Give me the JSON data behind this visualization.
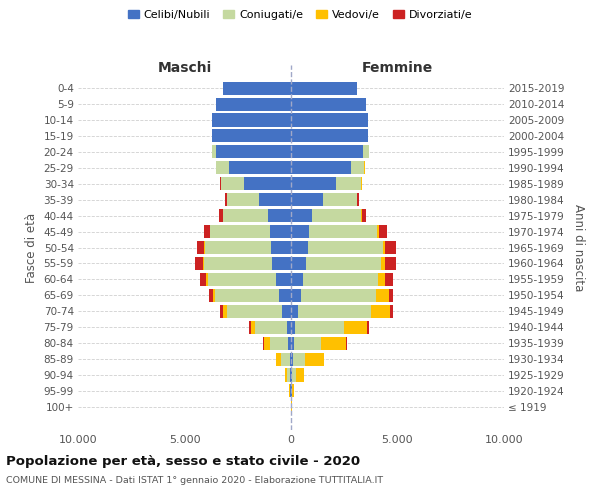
{
  "age_groups": [
    "100+",
    "95-99",
    "90-94",
    "85-89",
    "80-84",
    "75-79",
    "70-74",
    "65-69",
    "60-64",
    "55-59",
    "50-54",
    "45-49",
    "40-44",
    "35-39",
    "30-34",
    "25-29",
    "20-24",
    "15-19",
    "10-14",
    "5-9",
    "0-4"
  ],
  "birth_years": [
    "≤ 1919",
    "1920-1924",
    "1925-1929",
    "1930-1934",
    "1935-1939",
    "1940-1944",
    "1945-1949",
    "1950-1954",
    "1955-1959",
    "1960-1964",
    "1965-1969",
    "1970-1974",
    "1975-1979",
    "1980-1984",
    "1985-1989",
    "1990-1994",
    "1995-1999",
    "2000-2004",
    "2005-2009",
    "2010-2014",
    "2015-2019"
  ],
  "maschi": {
    "celibi": [
      10,
      25,
      40,
      70,
      150,
      200,
      400,
      550,
      700,
      900,
      950,
      1000,
      1100,
      1500,
      2200,
      2900,
      3500,
      3700,
      3700,
      3500,
      3200
    ],
    "coniugati": [
      8,
      35,
      130,
      400,
      850,
      1500,
      2600,
      3000,
      3200,
      3200,
      3100,
      2800,
      2100,
      1500,
      1100,
      600,
      200,
      10,
      0,
      0,
      0
    ],
    "vedovi": [
      5,
      20,
      90,
      230,
      290,
      200,
      200,
      100,
      80,
      50,
      30,
      20,
      10,
      5,
      5,
      5,
      5,
      5,
      0,
      0,
      0
    ],
    "divorziati": [
      0,
      0,
      5,
      10,
      30,
      80,
      150,
      200,
      280,
      350,
      350,
      250,
      150,
      80,
      40,
      10,
      5,
      0,
      0,
      0,
      0
    ]
  },
  "femmine": {
    "nubili": [
      10,
      25,
      40,
      80,
      130,
      200,
      350,
      480,
      580,
      720,
      800,
      850,
      1000,
      1500,
      2100,
      2800,
      3400,
      3600,
      3600,
      3500,
      3100
    ],
    "coniugate": [
      8,
      35,
      180,
      580,
      1300,
      2300,
      3400,
      3500,
      3500,
      3500,
      3500,
      3200,
      2300,
      1600,
      1200,
      650,
      250,
      20,
      0,
      0,
      0
    ],
    "vedove": [
      12,
      70,
      380,
      880,
      1150,
      1050,
      880,
      600,
      350,
      200,
      120,
      80,
      40,
      20,
      10,
      5,
      5,
      5,
      0,
      0,
      0
    ],
    "divorziate": [
      0,
      0,
      10,
      25,
      55,
      100,
      150,
      200,
      350,
      500,
      500,
      400,
      200,
      80,
      40,
      10,
      5,
      0,
      0,
      0,
      0
    ]
  },
  "colors": {
    "celibi": "#4472c4",
    "coniugati": "#c5d9a0",
    "vedovi": "#ffc000",
    "divorziati": "#cc2222"
  },
  "legend_labels": [
    "Celibi/Nubili",
    "Coniugati/e",
    "Vedovi/e",
    "Divorziati/e"
  ],
  "title": "Popolazione per età, sesso e stato civile - 2020",
  "subtitle": "COMUNE DI MESSINA - Dati ISTAT 1° gennaio 2020 - Elaborazione TUTTITALIA.IT",
  "label_maschi": "Maschi",
  "label_femmine": "Femmine",
  "ylabel_left": "Fasce di età",
  "ylabel_right": "Anni di nascita",
  "xlim": 10000,
  "xtick_labels": [
    "10.000",
    "5.000",
    "0",
    "5.000",
    "10.000"
  ],
  "background_color": "#ffffff",
  "grid_color": "#d0d0d0"
}
